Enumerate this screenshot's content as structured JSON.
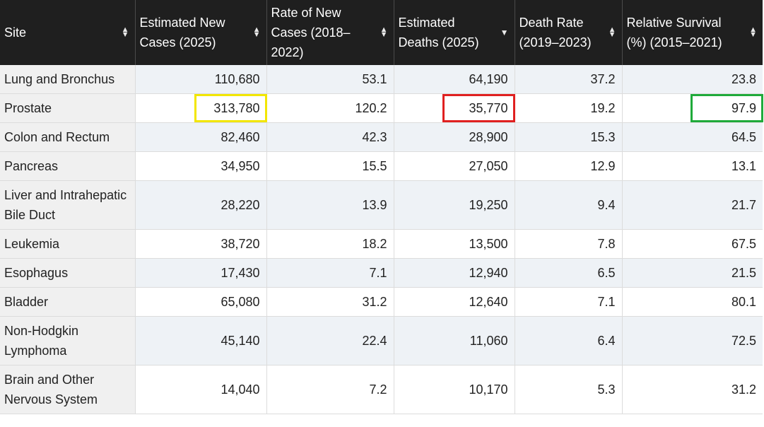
{
  "table": {
    "columns": [
      {
        "label": "Site",
        "sort": "unsorted"
      },
      {
        "label": "Estimated New Cases (2025)",
        "sort": "unsorted"
      },
      {
        "label": "Rate of New Cases (2018–2022)",
        "sort": "unsorted"
      },
      {
        "label": "Estimated Deaths (2025)",
        "sort": "descending"
      },
      {
        "label": "Death Rate (2019–2023)",
        "sort": "unsorted"
      },
      {
        "label": "Relative Survival (%) (2015–2021)",
        "sort": "unsorted"
      }
    ],
    "rows": [
      [
        "Lung and Bronchus",
        "110,680",
        "53.1",
        "64,190",
        "37.2",
        "23.8"
      ],
      [
        "Prostate",
        "313,780",
        "120.2",
        "35,770",
        "19.2",
        "97.9"
      ],
      [
        "Colon and Rectum",
        "82,460",
        "42.3",
        "28,900",
        "15.3",
        "64.5"
      ],
      [
        "Pancreas",
        "34,950",
        "15.5",
        "27,050",
        "12.9",
        "13.1"
      ],
      [
        "Liver and Intrahepatic Bile Duct",
        "28,220",
        "13.9",
        "19,250",
        "9.4",
        "21.7"
      ],
      [
        "Leukemia",
        "38,720",
        "18.2",
        "13,500",
        "7.8",
        "67.5"
      ],
      [
        "Esophagus",
        "17,430",
        "7.1",
        "12,940",
        "6.5",
        "21.5"
      ],
      [
        "Bladder",
        "65,080",
        "31.2",
        "12,640",
        "7.1",
        "80.1"
      ],
      [
        "Non-Hodgkin Lymphoma",
        "45,140",
        "22.4",
        "11,060",
        "6.4",
        "72.5"
      ],
      [
        "Brain and Other Nervous System",
        "14,040",
        "7.2",
        "10,170",
        "5.3",
        "31.2"
      ]
    ]
  },
  "highlights": [
    {
      "row": 1,
      "col": 1,
      "color": "#f2e600"
    },
    {
      "row": 1,
      "col": 3,
      "color": "#e02020"
    },
    {
      "row": 1,
      "col": 5,
      "color": "#1faa3a"
    }
  ],
  "icons": {
    "unsorted": "sort-icon",
    "descending": "sort-desc-icon"
  },
  "colors": {
    "header_bg": "#1f1f1f",
    "site_col_bg": "#f0f0f0",
    "stripe_bg": "#eef2f6"
  }
}
